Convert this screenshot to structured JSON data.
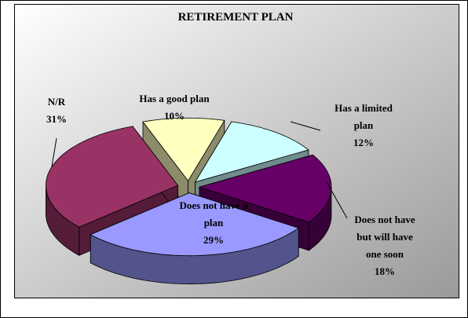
{
  "chart_data": {
    "type": "pie",
    "title": "RETIREMENT PLAN",
    "categories": [
      "Has a good plan",
      "Has a limited plan",
      "Does not have but will have one soon",
      "Does not have a plan",
      "N/R"
    ],
    "values": [
      10,
      12,
      18,
      29,
      31
    ],
    "value_labels": [
      "10%",
      "12%",
      "18%",
      "29%",
      "31%"
    ],
    "colors": [
      "#ffffc0",
      "#ccffff",
      "#660066",
      "#9999ff",
      "#993366"
    ]
  }
}
